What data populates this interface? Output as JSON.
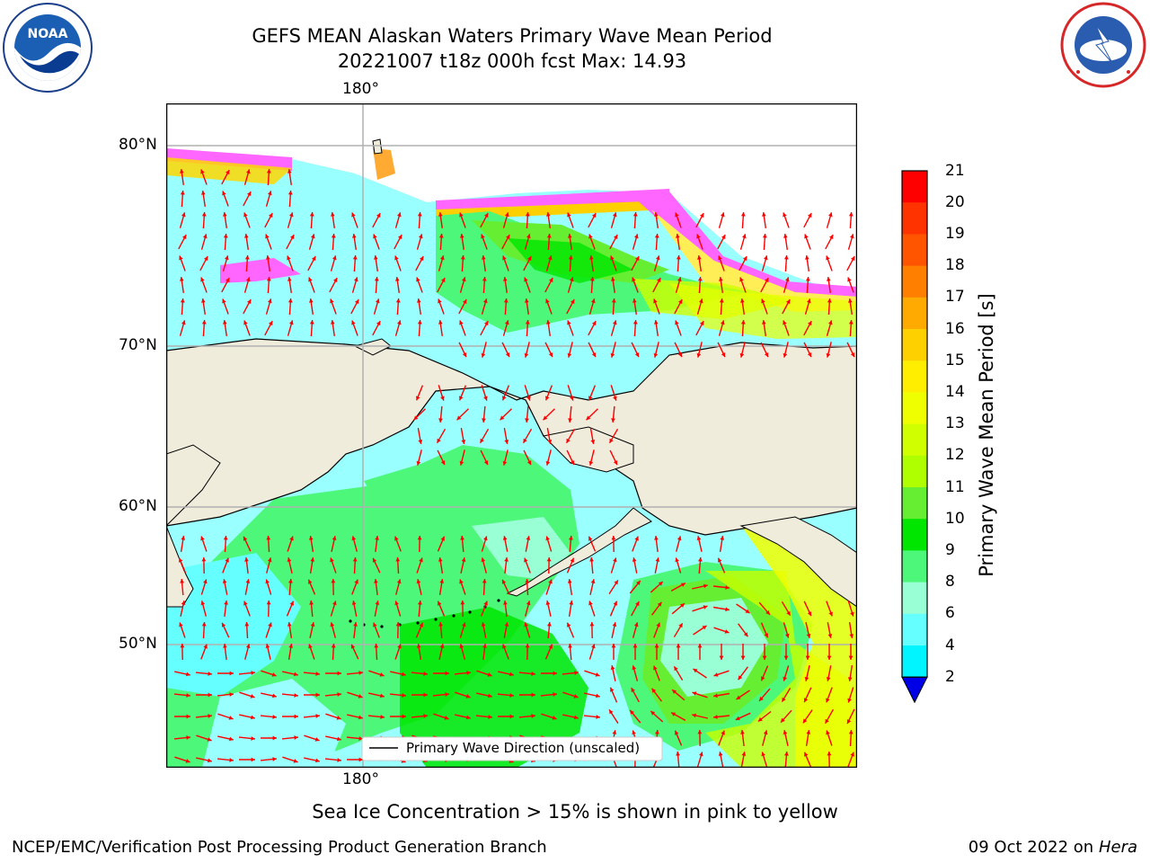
{
  "header": {
    "title_line1": "GEFS MEAN Alaskan Waters Primary Wave Mean Period",
    "title_line2": "20221007 t18z 000h fcst   Max: 14.93"
  },
  "logos": {
    "left_label": "NOAA",
    "right_label": "NATIONAL WEATHER SERVICE"
  },
  "map": {
    "lon_labels": [
      "180°",
      "180°"
    ],
    "lat_labels": [
      "80°N",
      "70°N",
      "60°N",
      "50°N"
    ],
    "legend_text": "Primary Wave Direction (unscaled)",
    "arrow_color": "#ff0000",
    "land_color": "#efecdc"
  },
  "colorbar": {
    "label": "Primary Wave Mean Period [s]",
    "ticks": [
      "21",
      "20",
      "19",
      "18",
      "17",
      "16",
      "15",
      "14",
      "13",
      "12",
      "11",
      "10",
      "9",
      "8",
      "6",
      "4",
      "2"
    ],
    "colors": [
      "#ff0000",
      "#ff3300",
      "#ff5500",
      "#ff8000",
      "#ffaa00",
      "#ffd000",
      "#ffee00",
      "#f0ff00",
      "#d0ff00",
      "#b0ff00",
      "#66ee33",
      "#00e600",
      "#4df77a",
      "#99ffd5",
      "#66ffff",
      "#00f5ff",
      "#00ccff",
      "#0070ff"
    ],
    "extend_color": "#0000e6"
  },
  "notes": {
    "sea_ice": "Sea Ice Concentration > 15% is shown in pink to yellow",
    "credit": "NCEP/EMC/Verification Post Processing Product Generation Branch",
    "date_prefix": "09 Oct 2022 on ",
    "date_machine": "Hera"
  }
}
